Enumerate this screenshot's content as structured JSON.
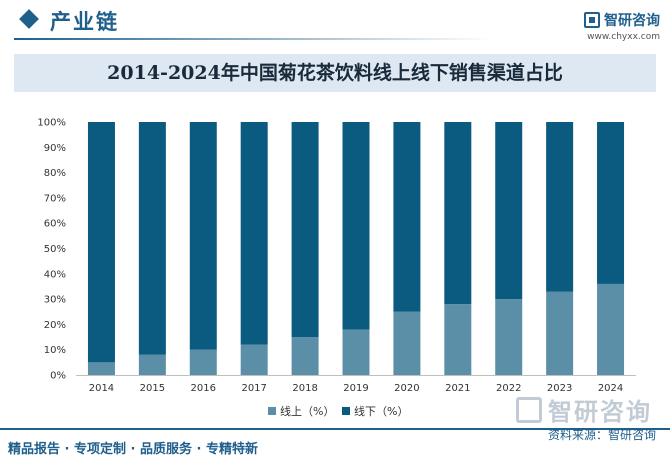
{
  "header": {
    "section_title": "产业链",
    "brand_name": "智研咨询",
    "brand_url": "www.chyxx.com"
  },
  "footer": {
    "tagline": "精品报告 · 专项定制 · 品质服务 · 专精特新",
    "source": "资料来源：智研咨询",
    "watermark": "智研咨询"
  },
  "colors": {
    "online": "#5b8fa8",
    "offline": "#0b5a80",
    "accent": "#1f5f8c"
  },
  "chart_data": {
    "type": "bar",
    "stacked": true,
    "title": "2014-2024年中国菊花茶饮料线上线下销售渠道占比",
    "categories": [
      "2014",
      "2015",
      "2016",
      "2017",
      "2018",
      "2019",
      "2020",
      "2021",
      "2022",
      "2023",
      "2024"
    ],
    "series": [
      {
        "name": "线上（%）",
        "values": [
          5,
          8,
          10,
          12,
          15,
          18,
          25,
          28,
          30,
          33,
          36
        ]
      },
      {
        "name": "线下（%）",
        "values": [
          95,
          92,
          90,
          88,
          85,
          82,
          75,
          72,
          70,
          67,
          64
        ]
      }
    ],
    "ylim": [
      0,
      100
    ],
    "yticks": [
      "0%",
      "10%",
      "20%",
      "30%",
      "40%",
      "50%",
      "60%",
      "70%",
      "80%",
      "90%",
      "100%"
    ],
    "legend_position": "bottom",
    "grid": false
  }
}
